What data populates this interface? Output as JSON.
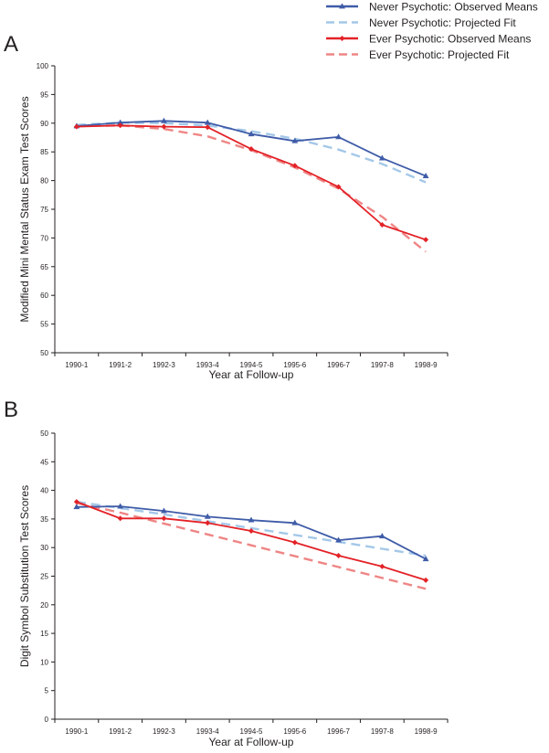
{
  "legend": [
    {
      "label": "Never Psychotic: Observed Means",
      "color": "#3f5ca8",
      "style": "solid",
      "marker": "triangle"
    },
    {
      "label": "Never Psychotic: Projected Fit",
      "color": "#a4c8e8",
      "style": "dashed",
      "marker": "none"
    },
    {
      "label": "Ever Psychotic: Observed Means",
      "color": "#e32227",
      "style": "solid",
      "marker": "diamond"
    },
    {
      "label": "Ever Psychotic: Projected Fit",
      "color": "#ef8585",
      "style": "dashed",
      "marker": "none"
    }
  ],
  "chart_data": [
    {
      "panel_label": "A",
      "type": "line",
      "xlabel": "Year at Follow-up",
      "ylabel": "Modified Mini Mental Status Exam Test Scores",
      "ylim": [
        50,
        100
      ],
      "yticks": [
        "50",
        "55",
        "60",
        "65",
        "70",
        "75",
        "80",
        "85",
        "90",
        "95",
        "100"
      ],
      "categories": [
        "1990-1",
        "1991-2",
        "1992-3",
        "1993-4",
        "1994-5",
        "1995-6",
        "1996-7",
        "1997-8",
        "1998-9"
      ],
      "series": [
        {
          "name": "Never Psychotic: Observed Means",
          "values": [
            89.5,
            90.1,
            90.4,
            90.1,
            88.1,
            86.9,
            87.6,
            83.9,
            80.8
          ]
        },
        {
          "name": "Never Psychotic: Projected Fit",
          "values": [
            89.7,
            90.1,
            90.0,
            89.6,
            88.6,
            87.3,
            85.4,
            82.9,
            79.7
          ]
        },
        {
          "name": "Ever Psychotic: Observed Means",
          "values": [
            89.4,
            89.6,
            89.4,
            89.3,
            85.5,
            82.6,
            78.9,
            72.3,
            69.7
          ]
        },
        {
          "name": "Ever Psychotic: Projected Fit",
          "values": [
            89.5,
            89.6,
            89.0,
            87.7,
            85.3,
            82.3,
            78.6,
            73.7,
            67.6
          ]
        }
      ]
    },
    {
      "panel_label": "B",
      "type": "line",
      "xlabel": "Year at Follow-up",
      "ylabel": "Digit Symbol Substitution Test Scores",
      "ylim": [
        0,
        50
      ],
      "yticks": [
        "0",
        "5",
        "10",
        "15",
        "20",
        "25",
        "30",
        "35",
        "40",
        "45",
        "50"
      ],
      "categories": [
        "1990-1",
        "1991-2",
        "1992-3",
        "1993-4",
        "1994-5",
        "1995-6",
        "1996-7",
        "1997-8",
        "1998-9"
      ],
      "series": [
        {
          "name": "Never Psychotic: Observed Means",
          "values": [
            37.1,
            37.2,
            36.4,
            35.4,
            34.8,
            34.3,
            31.3,
            32.0,
            28.0
          ]
        },
        {
          "name": "Never Psychotic: Projected Fit",
          "values": [
            38.0,
            36.9,
            35.8,
            34.6,
            33.4,
            32.2,
            31.0,
            29.8,
            28.6
          ]
        },
        {
          "name": "Ever Psychotic: Observed Means",
          "values": [
            38.0,
            35.1,
            35.1,
            34.3,
            32.9,
            30.9,
            28.6,
            26.7,
            24.3
          ]
        },
        {
          "name": "Ever Psychotic: Projected Fit",
          "values": [
            37.8,
            36.1,
            34.2,
            32.3,
            30.4,
            28.5,
            26.6,
            24.7,
            22.8
          ]
        }
      ]
    }
  ]
}
